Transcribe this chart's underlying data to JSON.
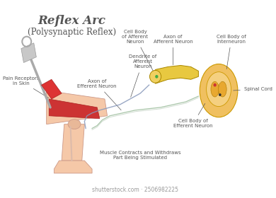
{
  "title": "Reflex Arc",
  "subtitle": "(Polysynaptic Reflex)",
  "title_color": "#555555",
  "background_color": "#ffffff",
  "labels": {
    "pain_receptors": "Pain Receptors\nin Skin",
    "axon_efferent": "Axon of\nEfferent Neuron",
    "cell_body_afferent": "Cell Body\nof Afferent\nNeuron",
    "axon_afferent": "Axon of\nAfferent Neuron",
    "cell_body_interneuron": "Cell Body of\nInterneuron",
    "dendrite_afferent": "Dendrite of\nAfferent\nNeuron",
    "cell_body_efferent": "Cell Body of\nEfferent Neuron",
    "spinal_cord": "Spinal Cord",
    "muscle_contracts": "Muscle Contracts and Withdraws\nPart Being Stimulated"
  },
  "colors": {
    "spinal_cord_outer": "#f0c060",
    "spinal_cord_inner": "#e8a830",
    "spinal_cord_center": "#f5d080",
    "neuron_body": "#f0d060",
    "neuron_axon": "#e8c840",
    "nerve_blue": "#8899bb",
    "nerve_green": "#99bb99",
    "leg_skin": "#f5c8a8",
    "leg_muscle": "#cc3333",
    "hammer_gray": "#aaaaaa",
    "hammer_red": "#dd3333",
    "dot_green": "#44aa44",
    "dot_red": "#cc3333",
    "label_color": "#555555",
    "arrow_color": "#555555"
  }
}
